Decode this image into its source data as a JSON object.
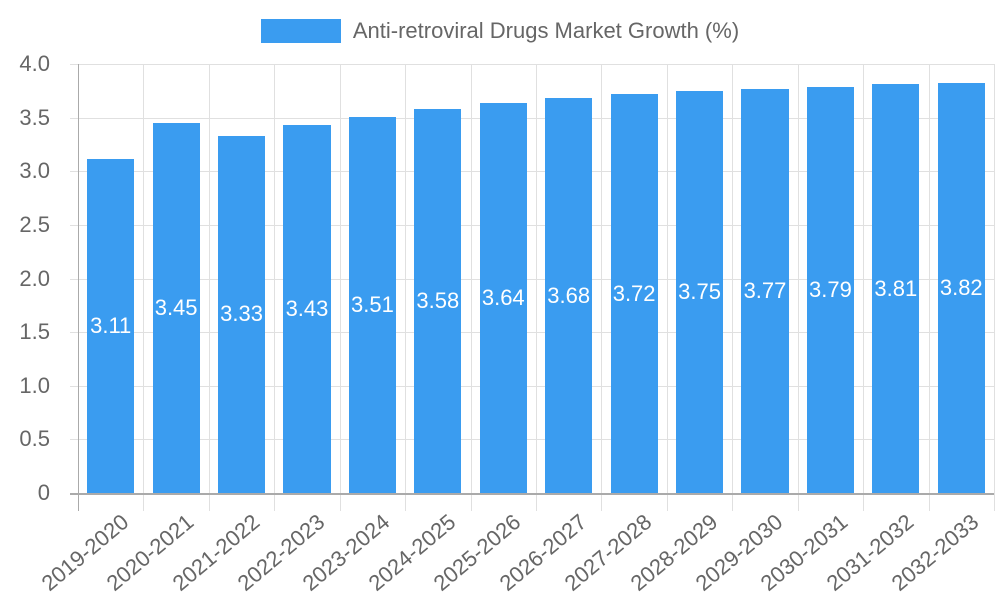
{
  "chart_data": {
    "type": "bar",
    "title": "",
    "legend": [
      "Anti-retroviral Drugs Market Growth (%)"
    ],
    "legend_position": "top",
    "categories": [
      "2019-2020",
      "2020-2021",
      "2021-2022",
      "2022-2023",
      "2023-2024",
      "2024-2025",
      "2025-2026",
      "2026-2027",
      "2027-2028",
      "2028-2029",
      "2029-2030",
      "2030-2031",
      "2031-2032",
      "2032-2033"
    ],
    "series": [
      {
        "name": "Anti-retroviral Drugs Market Growth (%)",
        "color": "#3a9cf0",
        "values": [
          3.11,
          3.45,
          3.33,
          3.43,
          3.51,
          3.58,
          3.64,
          3.68,
          3.72,
          3.75,
          3.77,
          3.79,
          3.81,
          3.82
        ]
      }
    ],
    "value_labels": [
      "3.11",
      "3.45",
      "3.33",
      "3.43",
      "3.51",
      "3.58",
      "3.64",
      "3.68",
      "3.72",
      "3.75",
      "3.77",
      "3.79",
      "3.81",
      "3.82"
    ],
    "xlabel": "",
    "ylabel": "",
    "ylim": [
      0,
      4.0
    ],
    "yticks": [
      "0",
      "0.5",
      "1.0",
      "1.5",
      "2.0",
      "2.5",
      "3.0",
      "3.5",
      "4.0"
    ],
    "grid": true
  },
  "legend": {
    "label": "Anti-retroviral Drugs Market Growth (%)",
    "color": "#3a9cf0"
  }
}
